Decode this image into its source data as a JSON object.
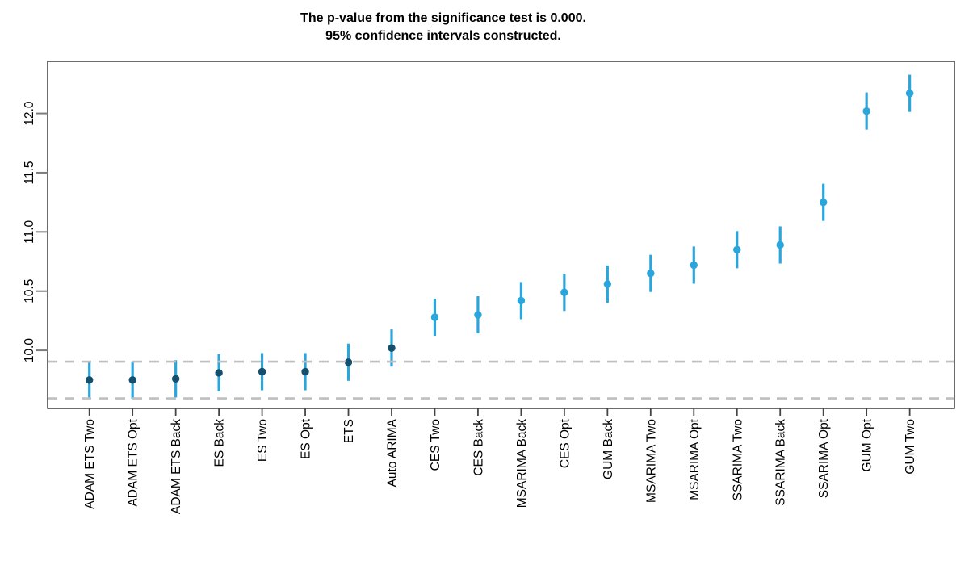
{
  "chart_data": {
    "type": "scatter",
    "title": "The p-value from the significance test is 0.000.",
    "subtitle": "95% confidence intervals constructed.",
    "categories": [
      "ADAM ETS Two",
      "ADAM ETS Opt",
      "ADAM ETS Back",
      "ES Back",
      "ES Two",
      "ES Opt",
      "ETS",
      "Auto ARIMA",
      "CES Two",
      "CES Back",
      "MSARIMA Back",
      "CES Opt",
      "GUM Back",
      "MSARIMA Two",
      "MSARIMA Opt",
      "SSARIMA Two",
      "SSARIMA Back",
      "SSARIMA Opt",
      "GUM Opt",
      "GUM Two"
    ],
    "values": [
      9.75,
      9.75,
      9.76,
      9.81,
      9.82,
      9.82,
      9.9,
      10.02,
      10.28,
      10.3,
      10.42,
      10.49,
      10.56,
      10.65,
      10.72,
      10.85,
      10.89,
      11.25,
      12.02,
      12.17
    ],
    "ci_halfwidth": 0.157,
    "groups": [
      "best",
      "best",
      "best",
      "best",
      "best",
      "best",
      "best",
      "best",
      "other",
      "other",
      "other",
      "other",
      "other",
      "other",
      "other",
      "other",
      "other",
      "other",
      "other",
      "other"
    ],
    "reference_lines": [
      9.905,
      9.595
    ],
    "ylim": [
      9.51,
      12.44
    ],
    "yticks": [
      10.0,
      10.5,
      11.0,
      11.5,
      12.0
    ],
    "ytick_labels": [
      "10.0",
      "10.5",
      "11.0",
      "11.5",
      "12.0"
    ],
    "xlabel": "",
    "ylabel": "",
    "grid": false,
    "legend": "none",
    "colors": {
      "interval_line": "#2BA6DC",
      "marker_best_group": "#14506E",
      "marker_other_group": "#2BA6DC",
      "reference_line": "#BFBFBF",
      "axis": "#333333",
      "text": "#000000"
    }
  }
}
